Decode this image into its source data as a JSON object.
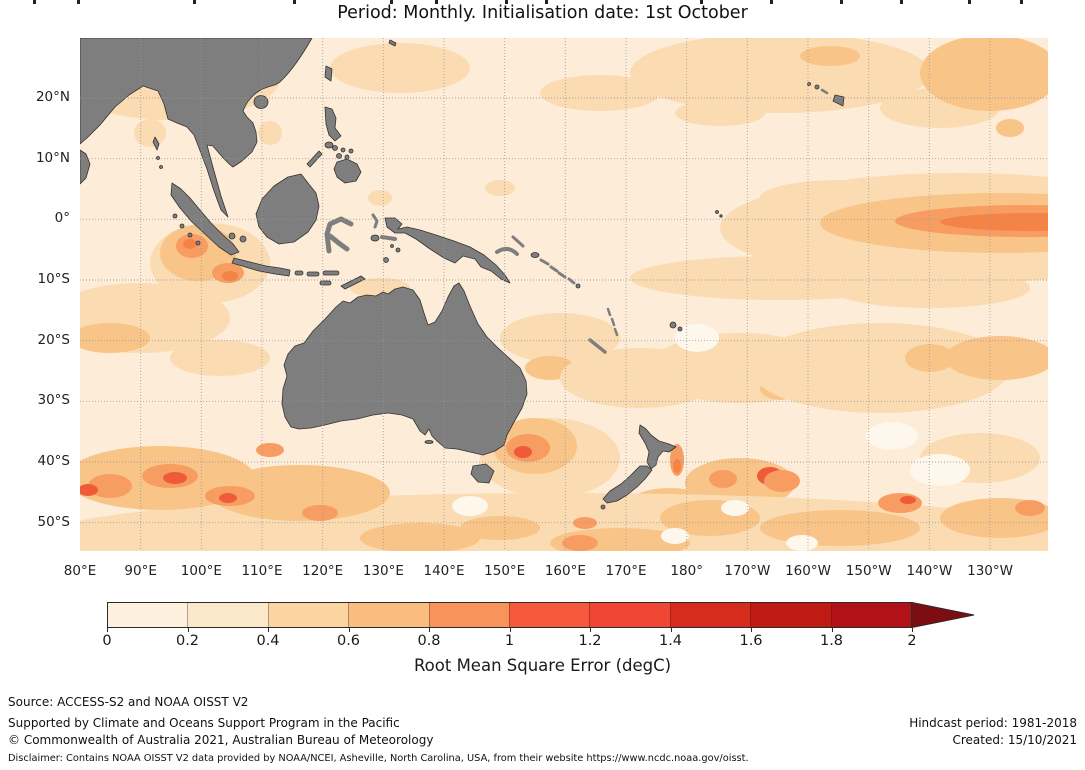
{
  "title": {
    "period_line": "Period: Monthly. Initialisation date: 1st October"
  },
  "map": {
    "lat_labels": [
      "20°N",
      "10°N",
      "0°",
      "10°S",
      "20°S",
      "30°S",
      "40°S",
      "50°S"
    ],
    "lon_labels": [
      "80°E",
      "90°E",
      "100°E",
      "110°E",
      "120°E",
      "130°E",
      "140°E",
      "150°E",
      "160°E",
      "170°E",
      "180°",
      "170°W",
      "160°W",
      "150°W",
      "140°W",
      "130°W"
    ],
    "land_color": "#7e7e7e",
    "land_outline_color": "#333333",
    "ocean_base_color": "#fdecd8",
    "field_palette": {
      "pale_spot": "#fef7ec",
      "light_peach": "#fbdcb2",
      "peach": "#f9c488",
      "orange": "#f79d62",
      "deep_orange": "#f58345",
      "red_orange": "#ef5a38"
    },
    "gridline_color": "#999999"
  },
  "colorbar": {
    "tick_labels": [
      "0",
      "0.2",
      "0.4",
      "0.6",
      "0.8",
      "1",
      "1.2",
      "1.4",
      "1.6",
      "1.8",
      "2"
    ],
    "segment_colors": [
      "#fdf0dc",
      "#fbe7c9",
      "#fbd4a2",
      "#fabc80",
      "#f9935a",
      "#f7593f",
      "#f04634",
      "#d52c1e",
      "#c01a15",
      "#b01217"
    ],
    "arrow_color": "#7d0d12",
    "label": "Root Mean Square Error (degC)"
  },
  "footer": {
    "source": "Source: ACCESS-S2 and NOAA OISST V2",
    "supported": "Supported by Climate and Oceans Support Program in the Pacific",
    "copyright": "© Commonwealth of Australia 2021, Australian Bureau of Meteorology",
    "hindcast": "Hindcast period: 1981-2018",
    "created": "Created: 15/10/2021",
    "disclaimer": "Disclaimer: Contains NOAA OISST V2 data provided by NOAA/NCEI, Asheville, North Carolina, USA, from their website https://www.ncdc.noaa.gov/oisst."
  },
  "chart_data": {
    "type": "heatmap",
    "subtype": "geographic filled-contour map of forecast RMSE over ocean, land masked grey",
    "title": "Period: Monthly. Initialisation date: 1st October",
    "variable": "Root Mean Square Error (degC)",
    "x_ticks": [
      "80°E",
      "90°E",
      "100°E",
      "110°E",
      "120°E",
      "130°E",
      "140°E",
      "150°E",
      "160°E",
      "170°E",
      "180°",
      "170°W",
      "160°W",
      "150°W",
      "140°W",
      "130°W"
    ],
    "y_ticks": [
      "20°N",
      "10°N",
      "0°",
      "10°S",
      "20°S",
      "30°S",
      "40°S",
      "50°S"
    ],
    "lon_range_deg_east": [
      80,
      240
    ],
    "lat_range_deg": [
      -55,
      30
    ],
    "grid": true,
    "colorbar": {
      "ticks": [
        0,
        0.2,
        0.4,
        0.6,
        0.8,
        1,
        1.2,
        1.4,
        1.6,
        1.8,
        2
      ],
      "range": [
        0,
        2
      ],
      "over_range_arrow": true,
      "label": "Root Mean Square Error (degC)",
      "orientation": "horizontal"
    },
    "value_summary": [
      {
        "region": "Most tropical western Pacific, maritime continent and Bay of Bengal",
        "rmse_degC": "0.1-0.3"
      },
      {
        "region": "Equatorial central Pacific tongue near 0°, 155°W-125°W",
        "rmse_degC": "0.8-1.0"
      },
      {
        "region": "South-west of Sumatra / south of Java (~100°E, 3°S-8°S)",
        "rmse_degC": "0.8-1.0"
      },
      {
        "region": "Tasman Sea south-east of Australia (~150°E, 36°S-42°S)",
        "rmse_degC": "1.0-1.2"
      },
      {
        "region": "East of New Zealand North Island and ~175°W, 40°S-45°S",
        "rmse_degC": "1.0-1.2"
      },
      {
        "region": "Southern Indian Ocean storm track 38°S-50°S, 80°E-120°E (patchy)",
        "rmse_degC": "0.6-1.2"
      },
      {
        "region": "Subtropics north of 20°N and 15°S-35°S central Pacific (mottled)",
        "rmse_degC": "0.3-0.5"
      },
      {
        "region": "Land areas",
        "rmse_degC": null
      }
    ]
  }
}
